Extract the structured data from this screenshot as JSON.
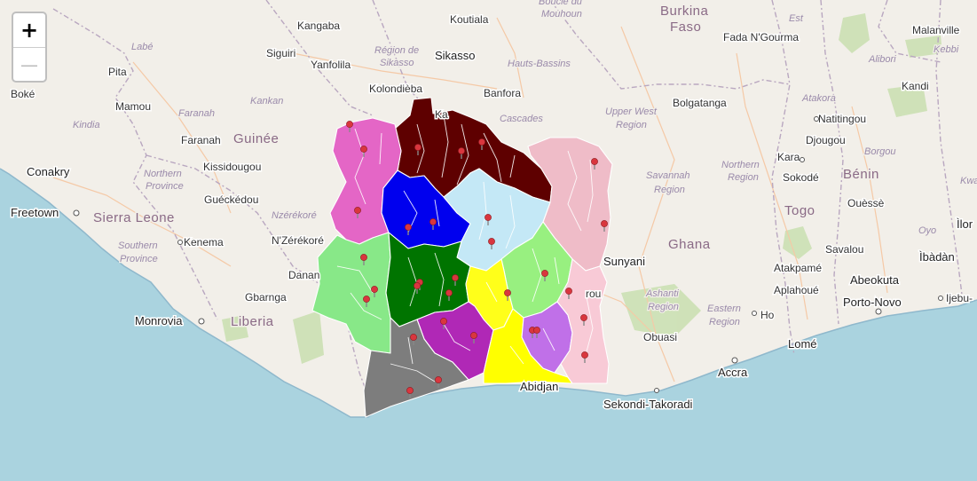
{
  "zoom": {
    "in_label": "+",
    "out_label": "—"
  },
  "countries": [
    {
      "key": "burkina1",
      "label": "Burkina"
    },
    {
      "key": "burkina2",
      "label": "Faso"
    },
    {
      "key": "guinee",
      "label": "Guinée"
    },
    {
      "key": "sierra",
      "label": "Sierra Leone"
    },
    {
      "key": "liberia",
      "label": "Liberia"
    },
    {
      "key": "ghana",
      "label": "Ghana"
    },
    {
      "key": "togo",
      "label": "Togo"
    },
    {
      "key": "benin",
      "label": "Bénin"
    }
  ],
  "regions": [
    {
      "key": "labe",
      "label": "Labé"
    },
    {
      "key": "kankan",
      "label": "Kankan"
    },
    {
      "key": "faranah_r",
      "label": "Faranah"
    },
    {
      "key": "kindia",
      "label": "Kindia"
    },
    {
      "key": "nzerekore_r",
      "label": "Nzérékoré"
    },
    {
      "key": "northern_sl1",
      "label": "Northern"
    },
    {
      "key": "northern_sl2",
      "label": "Province"
    },
    {
      "key": "southern_sl1",
      "label": "Southern"
    },
    {
      "key": "southern_sl2",
      "label": "Province"
    },
    {
      "key": "sikasso_r1",
      "label": "Région de"
    },
    {
      "key": "sikasso_r2",
      "label": "Sikasso"
    },
    {
      "key": "hauts",
      "label": "Hauts-Bassins"
    },
    {
      "key": "cascades",
      "label": "Cascades"
    },
    {
      "key": "boucle1",
      "label": "Boucle du"
    },
    {
      "key": "boucle2",
      "label": "Mouhoun"
    },
    {
      "key": "upper_west1",
      "label": "Upper West"
    },
    {
      "key": "upper_west2",
      "label": "Region"
    },
    {
      "key": "savannah1",
      "label": "Savannah"
    },
    {
      "key": "savannah2",
      "label": "Region"
    },
    {
      "key": "northern_gh1",
      "label": "Northern"
    },
    {
      "key": "northern_gh2",
      "label": "Region"
    },
    {
      "key": "ashanti1",
      "label": "Ashanti"
    },
    {
      "key": "ashanti2",
      "label": "Region"
    },
    {
      "key": "eastern1",
      "label": "Eastern"
    },
    {
      "key": "eastern2",
      "label": "Region"
    },
    {
      "key": "est",
      "label": "Est"
    },
    {
      "key": "atakora",
      "label": "Atakora"
    },
    {
      "key": "alibori",
      "label": "Alibori"
    },
    {
      "key": "borgou",
      "label": "Borgou"
    },
    {
      "key": "kebbi",
      "label": "Kebbi"
    },
    {
      "key": "oyo",
      "label": "Oyo"
    },
    {
      "key": "kwa",
      "label": "Kwa"
    }
  ],
  "cities": [
    {
      "key": "kangaba",
      "label": "Kangaba"
    },
    {
      "key": "koutiala",
      "label": "Koutiala"
    },
    {
      "key": "siguiri",
      "label": "Siguiri"
    },
    {
      "key": "yanfolila",
      "label": "Yanfolila"
    },
    {
      "key": "sikasso",
      "label": "Sikasso"
    },
    {
      "key": "kolondieba",
      "label": "Kolondièba"
    },
    {
      "key": "banfora",
      "label": "Banfora"
    },
    {
      "key": "pita",
      "label": "Pita"
    },
    {
      "key": "boke",
      "label": "Boké"
    },
    {
      "key": "mamou",
      "label": "Mamou"
    },
    {
      "key": "faranah",
      "label": "Faranah"
    },
    {
      "key": "kissidougou",
      "label": "Kissidougou"
    },
    {
      "key": "gueckedou",
      "label": "Guéckédou"
    },
    {
      "key": "conakry",
      "label": "Conakry"
    },
    {
      "key": "freetown",
      "label": "Freetown"
    },
    {
      "key": "kenema",
      "label": "Kenema"
    },
    {
      "key": "nzerekore",
      "label": "N'Zérékoré"
    },
    {
      "key": "danane",
      "label": "Danan"
    },
    {
      "key": "gbarnga",
      "label": "Gbarnga"
    },
    {
      "key": "monrovia",
      "label": "Monrovia"
    },
    {
      "key": "bolgatanga",
      "label": "Bolgatanga"
    },
    {
      "key": "fada",
      "label": "Fada N'Gourma"
    },
    {
      "key": "malanville",
      "label": "Malanville"
    },
    {
      "key": "kandi",
      "label": "Kandi"
    },
    {
      "key": "natitingou",
      "label": "Natitingou"
    },
    {
      "key": "djougou",
      "label": "Djougou"
    },
    {
      "key": "kara",
      "label": "Kara"
    },
    {
      "key": "sokode",
      "label": "Sokodé"
    },
    {
      "key": "ouesse",
      "label": "Ouèssè"
    },
    {
      "key": "savalou",
      "label": "Savalou"
    },
    {
      "key": "atakpame",
      "label": "Atakpamé"
    },
    {
      "key": "aplahoue",
      "label": "Aplahoué"
    },
    {
      "key": "abeokuta",
      "label": "Abeokuta"
    },
    {
      "key": "porto",
      "label": "Porto-Novo"
    },
    {
      "key": "ibadan",
      "label": "Ìbàdàn"
    },
    {
      "key": "ilorin",
      "label": "Ìlor"
    },
    {
      "key": "ijebu",
      "label": "Ijebu-"
    },
    {
      "key": "sunyani",
      "label": "Sunyani"
    },
    {
      "key": "obuasi",
      "label": "Obuasi"
    },
    {
      "key": "abidjan",
      "label": "Abidjan"
    },
    {
      "key": "sekondi",
      "label": "Sekondi-Takoradi"
    },
    {
      "key": "accra",
      "label": "Accra"
    },
    {
      "key": "lome",
      "label": "Lomé"
    },
    {
      "key": "ho",
      "label": "Ho"
    },
    {
      "key": "yamou",
      "label": "rou"
    },
    {
      "key": "ka",
      "label": "Ka"
    }
  ],
  "region_colors": {
    "savanes": "#5e0000",
    "bafing": "#e466c6",
    "woroba": "#0000ee",
    "zanzan": "#efbcc8",
    "vallee_bandama": "#c4e8f6",
    "montagnes": "#88e888",
    "sassandra_marahoue": "#007400",
    "lacs": "#98f080",
    "yamoussoukro": "#ffff1a",
    "goh_djiboua": "#b028b6",
    "bas_sassandra": "#7d7d7d",
    "lagunes": "#ffff00",
    "comoe": "#c070e8",
    "comoe_east": "#f8cad6"
  },
  "marker_color": "#d9363e",
  "marker_count": 31
}
